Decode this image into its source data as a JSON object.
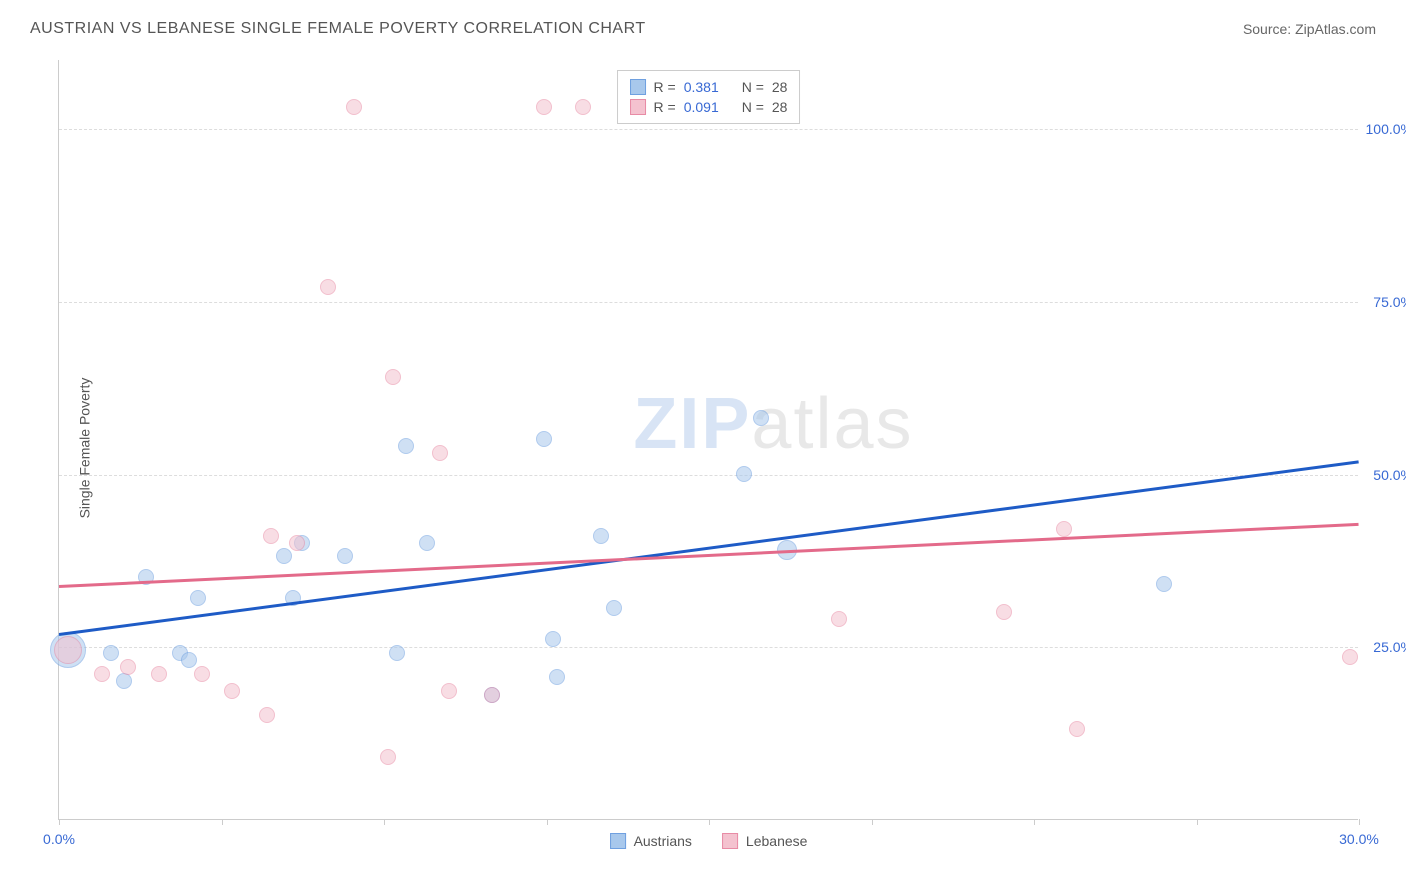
{
  "header": {
    "title": "AUSTRIAN VS LEBANESE SINGLE FEMALE POVERTY CORRELATION CHART",
    "source": "Source: ZipAtlas.com"
  },
  "watermark": {
    "zip": "ZIP",
    "atlas": "atlas"
  },
  "chart": {
    "type": "scatter",
    "y_label": "Single Female Poverty",
    "xlim": [
      0,
      30
    ],
    "ylim": [
      0,
      110
    ],
    "x_ticks": [
      0,
      3.75,
      7.5,
      11.25,
      15,
      18.75,
      22.5,
      26.25,
      30
    ],
    "x_tick_labels": {
      "0": "0.0%",
      "30": "30.0%"
    },
    "y_gridlines": [
      25,
      50,
      75,
      100
    ],
    "y_tick_labels": {
      "25": "25.0%",
      "50": "50.0%",
      "75": "75.0%",
      "100": "100.0%"
    },
    "axis_label_color": "#3869d4",
    "grid_color": "#dddddd",
    "background_color": "#ffffff",
    "series": [
      {
        "name": "Austrians",
        "fill_color": "#a8c8ec",
        "border_color": "#6fa0e0",
        "fill_opacity": 0.55,
        "trend": {
          "color": "#1e5bc6",
          "width": 2.5,
          "start": [
            0,
            27
          ],
          "end": [
            30,
            52
          ]
        },
        "points": [
          {
            "x": 0.2,
            "y": 24.5,
            "r": 18
          },
          {
            "x": 1.2,
            "y": 24,
            "r": 8
          },
          {
            "x": 1.5,
            "y": 20,
            "r": 8
          },
          {
            "x": 2.0,
            "y": 35,
            "r": 8
          },
          {
            "x": 2.8,
            "y": 24,
            "r": 8
          },
          {
            "x": 3.0,
            "y": 23,
            "r": 8
          },
          {
            "x": 3.2,
            "y": 32,
            "r": 8
          },
          {
            "x": 5.2,
            "y": 38,
            "r": 8
          },
          {
            "x": 5.4,
            "y": 32,
            "r": 8
          },
          {
            "x": 5.6,
            "y": 40,
            "r": 8
          },
          {
            "x": 6.6,
            "y": 38,
            "r": 8
          },
          {
            "x": 7.8,
            "y": 24,
            "r": 8
          },
          {
            "x": 8.0,
            "y": 54,
            "r": 8
          },
          {
            "x": 8.5,
            "y": 40,
            "r": 8
          },
          {
            "x": 10.0,
            "y": 18,
            "r": 8
          },
          {
            "x": 11.2,
            "y": 55,
            "r": 8
          },
          {
            "x": 11.4,
            "y": 26,
            "r": 8
          },
          {
            "x": 11.5,
            "y": 20.5,
            "r": 8
          },
          {
            "x": 12.5,
            "y": 41,
            "r": 8
          },
          {
            "x": 12.8,
            "y": 30.5,
            "r": 8
          },
          {
            "x": 15.8,
            "y": 50,
            "r": 8
          },
          {
            "x": 16.2,
            "y": 58,
            "r": 8
          },
          {
            "x": 16.8,
            "y": 39,
            "r": 10
          },
          {
            "x": 25.5,
            "y": 34,
            "r": 8
          }
        ]
      },
      {
        "name": "Lebanese",
        "fill_color": "#f4c2cf",
        "border_color": "#e88ba5",
        "fill_opacity": 0.55,
        "trend": {
          "color": "#e36a8a",
          "width": 2.5,
          "start": [
            0,
            34
          ],
          "end": [
            30,
            43
          ]
        },
        "points": [
          {
            "x": 0.2,
            "y": 24.5,
            "r": 14
          },
          {
            "x": 1.0,
            "y": 21,
            "r": 8
          },
          {
            "x": 1.6,
            "y": 22,
            "r": 8
          },
          {
            "x": 2.3,
            "y": 21,
            "r": 8
          },
          {
            "x": 3.3,
            "y": 21,
            "r": 8
          },
          {
            "x": 4.0,
            "y": 18.5,
            "r": 8
          },
          {
            "x": 4.8,
            "y": 15,
            "r": 8
          },
          {
            "x": 4.9,
            "y": 41,
            "r": 8
          },
          {
            "x": 5.5,
            "y": 40,
            "r": 8
          },
          {
            "x": 6.2,
            "y": 77,
            "r": 8
          },
          {
            "x": 6.8,
            "y": 103,
            "r": 8
          },
          {
            "x": 7.6,
            "y": 9,
            "r": 8
          },
          {
            "x": 7.7,
            "y": 64,
            "r": 8
          },
          {
            "x": 8.8,
            "y": 53,
            "r": 8
          },
          {
            "x": 9.0,
            "y": 18.5,
            "r": 8
          },
          {
            "x": 10.0,
            "y": 18,
            "r": 8
          },
          {
            "x": 11.2,
            "y": 103,
            "r": 8
          },
          {
            "x": 12.1,
            "y": 103,
            "r": 8
          },
          {
            "x": 18.0,
            "y": 29,
            "r": 8
          },
          {
            "x": 21.8,
            "y": 30,
            "r": 8
          },
          {
            "x": 23.2,
            "y": 42,
            "r": 8
          },
          {
            "x": 23.5,
            "y": 13,
            "r": 8
          },
          {
            "x": 29.8,
            "y": 23.5,
            "r": 8
          }
        ]
      }
    ]
  },
  "legend_top": {
    "rows": [
      {
        "swatch_fill": "#a8c8ec",
        "swatch_border": "#6fa0e0",
        "r_label": "R =",
        "r_value": "0.381",
        "n_label": "N =",
        "n_value": "28"
      },
      {
        "swatch_fill": "#f4c2cf",
        "swatch_border": "#e88ba5",
        "r_label": "R =",
        "r_value": "0.091",
        "n_label": "N =",
        "n_value": "28"
      }
    ]
  },
  "legend_bottom": {
    "items": [
      {
        "swatch_fill": "#a8c8ec",
        "swatch_border": "#6fa0e0",
        "label": "Austrians"
      },
      {
        "swatch_fill": "#f4c2cf",
        "swatch_border": "#e88ba5",
        "label": "Lebanese"
      }
    ]
  }
}
